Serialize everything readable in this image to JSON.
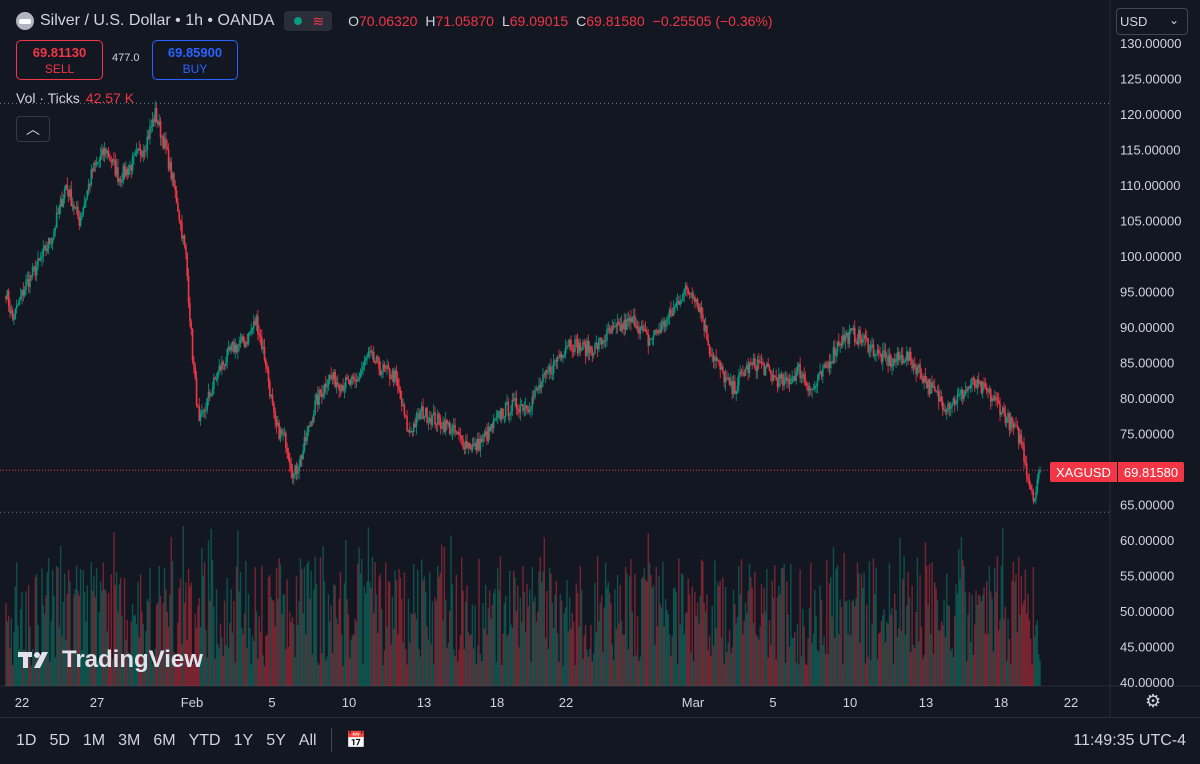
{
  "header": {
    "title": "Silver / U.S. Dollar • 1h • OANDA",
    "open_key": "O",
    "open": "70.06320",
    "high_key": "H",
    "high": "71.05870",
    "low_key": "L",
    "low": "69.09015",
    "close_key": "C",
    "close": "69.81580",
    "change": "−0.25505 (−0.36%)"
  },
  "trade": {
    "sell_price": "69.81130",
    "sell_label": "SELL",
    "buy_price": "69.85900",
    "buy_label": "BUY",
    "spread": "477.0"
  },
  "volume": {
    "label": "Vol · Ticks",
    "value": "42.57 K"
  },
  "currency": {
    "selected": "USD"
  },
  "price_tag": {
    "symbol": "XAGUSD",
    "price": "69.81580"
  },
  "watermark": "TradingView",
  "ranges": [
    "1D",
    "5D",
    "1M",
    "3M",
    "6M",
    "YTD",
    "1Y",
    "5Y",
    "All"
  ],
  "clock": "11:49:35 UTC-4",
  "colors": {
    "up": "#089981",
    "down": "#f23645",
    "bg": "#131722",
    "accent": "#2962ff"
  },
  "chart_data": {
    "type": "candlestick",
    "title": "Silver / U.S. Dollar • 1h • OANDA",
    "y_axis_labels": [
      "130.00000",
      "125.00000",
      "120.00000",
      "115.00000",
      "110.00000",
      "105.00000",
      "100.00000",
      "95.00000",
      "90.00000",
      "85.00000",
      "80.00000",
      "75.00000",
      "70.00000",
      "65.00000",
      "60.00000",
      "55.00000",
      "50.00000",
      "45.00000",
      "40.00000"
    ],
    "ylim": [
      40,
      131
    ],
    "x_axis_labels": [
      "22",
      "27",
      "Feb",
      "5",
      "10",
      "13",
      "18",
      "22",
      "Mar",
      "5",
      "10",
      "13",
      "18",
      "22"
    ],
    "last_price": 69.8158,
    "high_marker": 121.5,
    "low_marker": 63.9,
    "close_path": [
      {
        "i": 0,
        "p": 95
      },
      {
        "i": 5,
        "p": 91
      },
      {
        "i": 15,
        "p": 96
      },
      {
        "i": 25,
        "p": 99
      },
      {
        "i": 35,
        "p": 103
      },
      {
        "i": 45,
        "p": 110
      },
      {
        "i": 55,
        "p": 105
      },
      {
        "i": 65,
        "p": 112
      },
      {
        "i": 75,
        "p": 115
      },
      {
        "i": 85,
        "p": 111
      },
      {
        "i": 95,
        "p": 113
      },
      {
        "i": 105,
        "p": 116
      },
      {
        "i": 112,
        "p": 120
      },
      {
        "i": 120,
        "p": 115
      },
      {
        "i": 128,
        "p": 108
      },
      {
        "i": 135,
        "p": 100
      },
      {
        "i": 140,
        "p": 86
      },
      {
        "i": 145,
        "p": 76
      },
      {
        "i": 152,
        "p": 80
      },
      {
        "i": 160,
        "p": 84
      },
      {
        "i": 170,
        "p": 87
      },
      {
        "i": 180,
        "p": 88
      },
      {
        "i": 188,
        "p": 91
      },
      {
        "i": 195,
        "p": 85
      },
      {
        "i": 202,
        "p": 76
      },
      {
        "i": 210,
        "p": 74
      },
      {
        "i": 216,
        "p": 69
      },
      {
        "i": 222,
        "p": 72
      },
      {
        "i": 232,
        "p": 79
      },
      {
        "i": 242,
        "p": 83
      },
      {
        "i": 252,
        "p": 82
      },
      {
        "i": 262,
        "p": 82
      },
      {
        "i": 272,
        "p": 86
      },
      {
        "i": 282,
        "p": 84
      },
      {
        "i": 292,
        "p": 83
      },
      {
        "i": 302,
        "p": 75
      },
      {
        "i": 312,
        "p": 78
      },
      {
        "i": 322,
        "p": 77
      },
      {
        "i": 332,
        "p": 76
      },
      {
        "i": 342,
        "p": 74
      },
      {
        "i": 352,
        "p": 73
      },
      {
        "i": 362,
        "p": 75
      },
      {
        "i": 372,
        "p": 78
      },
      {
        "i": 382,
        "p": 79
      },
      {
        "i": 392,
        "p": 79
      },
      {
        "i": 402,
        "p": 82
      },
      {
        "i": 412,
        "p": 85
      },
      {
        "i": 422,
        "p": 88
      },
      {
        "i": 432,
        "p": 87
      },
      {
        "i": 442,
        "p": 87
      },
      {
        "i": 452,
        "p": 89
      },
      {
        "i": 462,
        "p": 90
      },
      {
        "i": 472,
        "p": 91
      },
      {
        "i": 482,
        "p": 88
      },
      {
        "i": 492,
        "p": 90
      },
      {
        "i": 500,
        "p": 92
      },
      {
        "i": 508,
        "p": 95
      },
      {
        "i": 516,
        "p": 95
      },
      {
        "i": 522,
        "p": 92
      },
      {
        "i": 528,
        "p": 87
      },
      {
        "i": 536,
        "p": 84
      },
      {
        "i": 545,
        "p": 81
      },
      {
        "i": 555,
        "p": 84
      },
      {
        "i": 565,
        "p": 85
      },
      {
        "i": 575,
        "p": 83
      },
      {
        "i": 585,
        "p": 82
      },
      {
        "i": 595,
        "p": 84
      },
      {
        "i": 605,
        "p": 81
      },
      {
        "i": 615,
        "p": 84
      },
      {
        "i": 625,
        "p": 88
      },
      {
        "i": 635,
        "p": 89
      },
      {
        "i": 645,
        "p": 88
      },
      {
        "i": 655,
        "p": 86
      },
      {
        "i": 665,
        "p": 85
      },
      {
        "i": 675,
        "p": 86
      },
      {
        "i": 685,
        "p": 84
      },
      {
        "i": 695,
        "p": 81
      },
      {
        "i": 705,
        "p": 79
      },
      {
        "i": 715,
        "p": 80
      },
      {
        "i": 725,
        "p": 82
      },
      {
        "i": 735,
        "p": 81
      },
      {
        "i": 745,
        "p": 79
      },
      {
        "i": 755,
        "p": 76
      },
      {
        "i": 762,
        "p": 74
      },
      {
        "i": 768,
        "p": 68
      },
      {
        "i": 772,
        "p": 66
      },
      {
        "i": 776,
        "p": 69.8
      }
    ]
  }
}
